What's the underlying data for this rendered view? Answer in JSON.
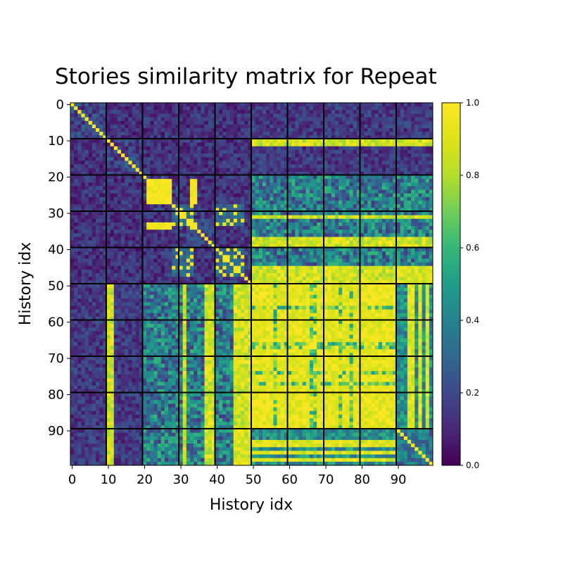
{
  "chart_data": {
    "type": "heatmap",
    "title": "Stories similarity matrix for Repeat",
    "xlabel": "History idx",
    "ylabel": "History idx",
    "matrix_size": 100,
    "x_ticks": [
      0,
      10,
      20,
      30,
      40,
      50,
      60,
      70,
      80,
      90
    ],
    "y_ticks": [
      0,
      10,
      20,
      30,
      40,
      50,
      60,
      70,
      80,
      90
    ],
    "value_range": [
      0,
      1
    ],
    "colormap": "viridis",
    "colorbar_ticks": [
      "0.0",
      "0.2",
      "0.4",
      "0.6",
      "0.8",
      "1.0"
    ],
    "block_boundaries": [
      9.5,
      19.5,
      29.5,
      39.5,
      49.5,
      59.5,
      69.5,
      79.5,
      89.5
    ],
    "diagonal_value": 1.0,
    "groups": [
      {
        "indices": "0-9",
        "within_group": 0.08,
        "vs_50_99": 0.15
      },
      {
        "indices": "10-19",
        "within_group": 0.1,
        "vs_50_99": 0.15
      },
      {
        "indices": "20-29",
        "within_group": 0.22,
        "cluster_21_27": 0.98,
        "vs_50_99": 0.35
      },
      {
        "indices": "30-39",
        "within_group": 0.2,
        "vs_50_99": 0.4
      },
      {
        "indices": "40-49",
        "within_group": 0.2,
        "vs_50_99": 0.4
      },
      {
        "indices": "50-99",
        "high_block_50_90": 0.93,
        "vs_90_99": 0.45
      }
    ]
  }
}
